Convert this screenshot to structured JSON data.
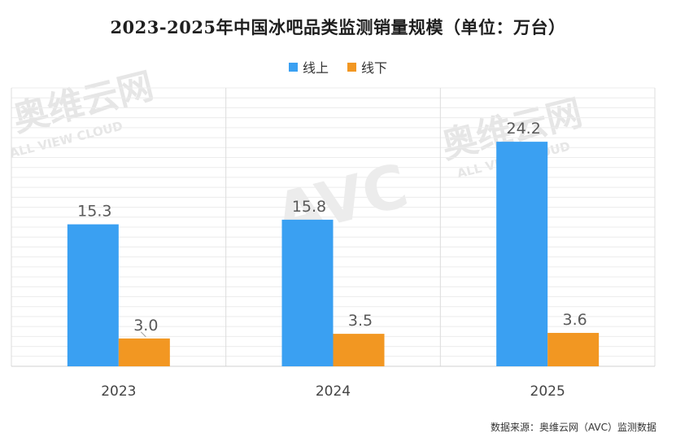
{
  "chart_data": {
    "type": "bar",
    "title": "2023-2025年中国冰吧品类监测销量规模（单位：万台）",
    "categories": [
      "2023",
      "2024",
      "2025"
    ],
    "series": [
      {
        "name": "线上",
        "values": [
          15.3,
          15.8,
          24.2
        ],
        "value_labels": [
          "15.3",
          "15.8",
          "24.2"
        ]
      },
      {
        "name": "线下",
        "values": [
          3.0,
          3.5,
          3.6
        ],
        "value_labels": [
          "3.0",
          "3.5",
          "3.6"
        ]
      }
    ],
    "xlabel": "",
    "ylabel": "",
    "ylim": [
      0,
      30
    ],
    "grid": true,
    "legend_position": "top-center",
    "colors": [
      "#3aa0f2",
      "#f29722"
    ]
  },
  "source": "数据来源：奥维云网（AVC）监测数据",
  "watermark": {
    "brand": "奥维云网",
    "tagline": "ALL VIEW CLOUD",
    "logo": "AVC"
  }
}
